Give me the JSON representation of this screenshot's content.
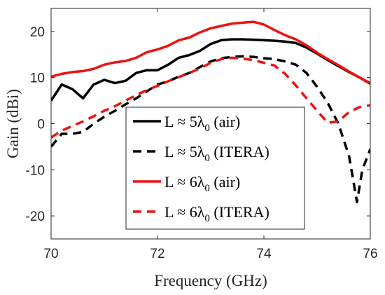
{
  "chart_data": {
    "type": "line",
    "title": "",
    "xlabel": "Frequency (GHz)",
    "ylabel": "Gain (dBi)",
    "xlim": [
      70,
      76
    ],
    "ylim": [
      -25,
      25
    ],
    "x_ticks": [
      70,
      72,
      74,
      76
    ],
    "y_ticks": [
      -20,
      -10,
      0,
      10,
      20
    ],
    "grid": false,
    "legend_position": "center",
    "series": [
      {
        "name": "L ≈ 5λ0 (air)",
        "legend": {
          "prefix": "L ≈ 5λ",
          "sub": "0",
          "suffix": " (air)"
        },
        "color": "#000000",
        "style": "solid",
        "x": [
          70,
          70.2,
          70.4,
          70.6,
          70.8,
          71,
          71.2,
          71.4,
          71.6,
          71.8,
          72,
          72.2,
          72.4,
          72.6,
          72.8,
          73,
          73.2,
          73.4,
          73.6,
          73.8,
          74,
          74.2,
          74.4,
          74.6,
          74.8,
          75,
          75.2,
          75.4,
          75.6,
          75.8,
          76
        ],
        "y": [
          5,
          8.5,
          7.5,
          5.5,
          8.5,
          9.5,
          8.8,
          9.3,
          11,
          11.6,
          11.6,
          12.8,
          14.3,
          14.9,
          15.8,
          17.3,
          18.1,
          18.3,
          18.3,
          18.2,
          18.1,
          18,
          17.8,
          17.5,
          16.5,
          15.2,
          13.8,
          12.5,
          11.2,
          10,
          8.7
        ]
      },
      {
        "name": "L ≈ 5λ0 (ITERA)",
        "legend": {
          "prefix": "L ≈ 5λ",
          "sub": "0",
          "suffix": " (ITERA)"
        },
        "color": "#000000",
        "style": "dashed",
        "x": [
          70,
          70.2,
          70.4,
          70.6,
          70.8,
          71,
          71.2,
          71.4,
          71.6,
          71.8,
          72,
          72.2,
          72.4,
          72.6,
          72.8,
          73,
          73.2,
          73.4,
          73.6,
          73.8,
          74,
          74.2,
          74.4,
          74.6,
          74.8,
          75,
          75.2,
          75.4,
          75.6,
          75.75,
          75.85,
          76
        ],
        "y": [
          -5,
          -2.2,
          -2.2,
          -1.8,
          0,
          1.5,
          2.8,
          4.2,
          5.5,
          7,
          8.5,
          9.2,
          10.2,
          11,
          12.3,
          13.5,
          14.2,
          14.5,
          14.6,
          14.5,
          14.2,
          14,
          13.5,
          12.8,
          11,
          8,
          4.5,
          0,
          -7,
          -17,
          -10,
          -5.5
        ]
      },
      {
        "name": "L ≈ 6λ0 (air)",
        "legend": {
          "prefix": "L ≈ 6λ",
          "sub": "0",
          "suffix": " (air)"
        },
        "color": "#ee1111",
        "style": "solid",
        "x": [
          70,
          70.2,
          70.4,
          70.6,
          70.8,
          71,
          71.2,
          71.4,
          71.6,
          71.8,
          72,
          72.2,
          72.4,
          72.6,
          72.8,
          73,
          73.2,
          73.4,
          73.6,
          73.8,
          74,
          74.2,
          74.4,
          74.6,
          74.8,
          75,
          75.2,
          75.4,
          75.6,
          75.8,
          76
        ],
        "y": [
          10.2,
          10.8,
          11.2,
          11.4,
          11.9,
          12.8,
          13.3,
          13.6,
          14.3,
          15.5,
          16.1,
          16.9,
          18.1,
          18.7,
          19.8,
          20.7,
          21.2,
          21.7,
          21.9,
          22.1,
          21.5,
          20.3,
          19.2,
          18.3,
          17,
          15.4,
          14,
          12.7,
          11.3,
          10,
          8.8
        ]
      },
      {
        "name": "L ≈ 6λ0 (ITERA)",
        "legend": {
          "prefix": "L ≈ 6λ",
          "sub": "0",
          "suffix": " (ITERA)"
        },
        "color": "#ee1111",
        "style": "dashed",
        "x": [
          70,
          70.2,
          70.4,
          70.6,
          70.8,
          71,
          71.2,
          71.4,
          71.6,
          71.8,
          72,
          72.2,
          72.4,
          72.6,
          72.8,
          73,
          73.2,
          73.4,
          73.6,
          73.8,
          74,
          74.2,
          74.4,
          74.6,
          74.8,
          75,
          75.2,
          75.4,
          75.6,
          75.8,
          76
        ],
        "y": [
          -3,
          -1.5,
          -0.5,
          0.5,
          1.6,
          2.8,
          3.8,
          5,
          6.2,
          7.3,
          8.2,
          9.2,
          10.1,
          11,
          12,
          13.2,
          14,
          14.3,
          14.1,
          13.8,
          13.2,
          12.6,
          10.8,
          8.3,
          5.5,
          2.8,
          0.2,
          0.5,
          2.5,
          3.6,
          4
        ]
      }
    ]
  }
}
